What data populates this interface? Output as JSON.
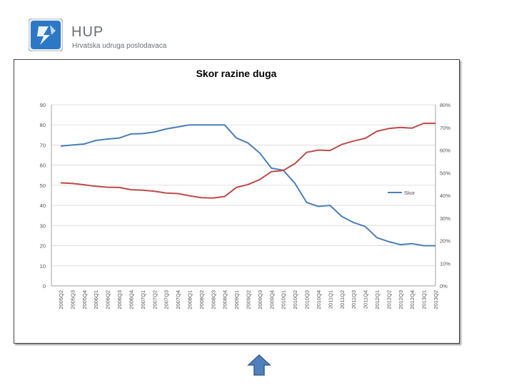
{
  "header": {
    "logo_text": "HUP",
    "subtitle": "Hrvatska udruga poslodavaca"
  },
  "colors": {
    "skor": "#4a7ebb",
    "second": "#be4b48",
    "axis_text": "#555555",
    "grid": "#d9d9d9"
  },
  "chart_data": {
    "type": "line",
    "title": "Skor razine duga",
    "categories": [
      "2005Q2",
      "2005Q3",
      "2005Q4",
      "2006Q1",
      "2006Q2",
      "2006Q3",
      "2006Q4",
      "2007Q1",
      "2007Q2",
      "2007Q3",
      "2007Q4",
      "2008Q1",
      "2008Q2",
      "2008Q3",
      "2008Q4",
      "2009Q1",
      "2009Q2",
      "2009Q3",
      "2009Q4",
      "2010Q1",
      "2010Q2",
      "2010Q3",
      "2010Q4",
      "2011Q1",
      "2011Q2",
      "2011Q3",
      "2011Q4",
      "2012Q1",
      "2012Q2",
      "2012Q3",
      "2012Q4",
      "2013Q1",
      "2013Q2"
    ],
    "x_tick_labels": [
      "2005Q2",
      "2005Q3",
      "2005Q4",
      "2006Q1",
      "2006Q2",
      "2006Q3",
      "2006Q4",
      "2007Q1",
      "2007Q2",
      "2007Q3",
      "2007Q4",
      "2008Q1",
      "2008Q2",
      "2008Q3",
      "2008Q4",
      "2009Q1",
      "2009Q2",
      "2009Q3",
      "2009Q4",
      "2010Q1",
      "2010Q2",
      "2010Q3",
      "2010Q4",
      "2011Q1",
      "2011Q2",
      "2011Q3",
      "2011Q4",
      "2012Q1",
      "2012Q2",
      "2012Q3",
      "2012Q4",
      "2013Q1",
      "2013Q2"
    ],
    "y_left_ticks": [
      "90",
      "80",
      "70",
      "60",
      "50",
      "40",
      "30",
      "20",
      "10",
      "0"
    ],
    "y_right_ticks": [
      "80%",
      "70%",
      "60%",
      "50%",
      "40%",
      "30%",
      "20%",
      "10%",
      "0%"
    ],
    "ylim": [
      0,
      90
    ],
    "y2lim": [
      0,
      0.8
    ],
    "series": [
      {
        "name": "Skor",
        "axis": "left",
        "values": [
          69.5,
          70,
          70.5,
          72.3,
          73,
          73.5,
          75.5,
          75.7,
          76.5,
          78,
          79,
          80,
          80,
          80,
          80,
          73.5,
          71,
          66,
          58.5,
          57.5,
          51,
          41.5,
          39.5,
          40,
          34.5,
          31.5,
          29.5,
          24,
          22,
          20.5,
          21,
          20,
          20
        ]
      },
      {
        "axis": "right",
        "values": [
          0.455,
          0.453,
          0.447,
          0.44,
          0.436,
          0.435,
          0.425,
          0.423,
          0.418,
          0.41,
          0.408,
          0.398,
          0.39,
          0.388,
          0.395,
          0.435,
          0.448,
          0.47,
          0.505,
          0.51,
          0.54,
          0.59,
          0.6,
          0.598,
          0.625,
          0.64,
          0.652,
          0.683,
          0.695,
          0.7,
          0.697,
          0.718,
          0.718
        ]
      }
    ],
    "legend": [
      "Skor"
    ],
    "legend_position": "right",
    "grid": true
  }
}
